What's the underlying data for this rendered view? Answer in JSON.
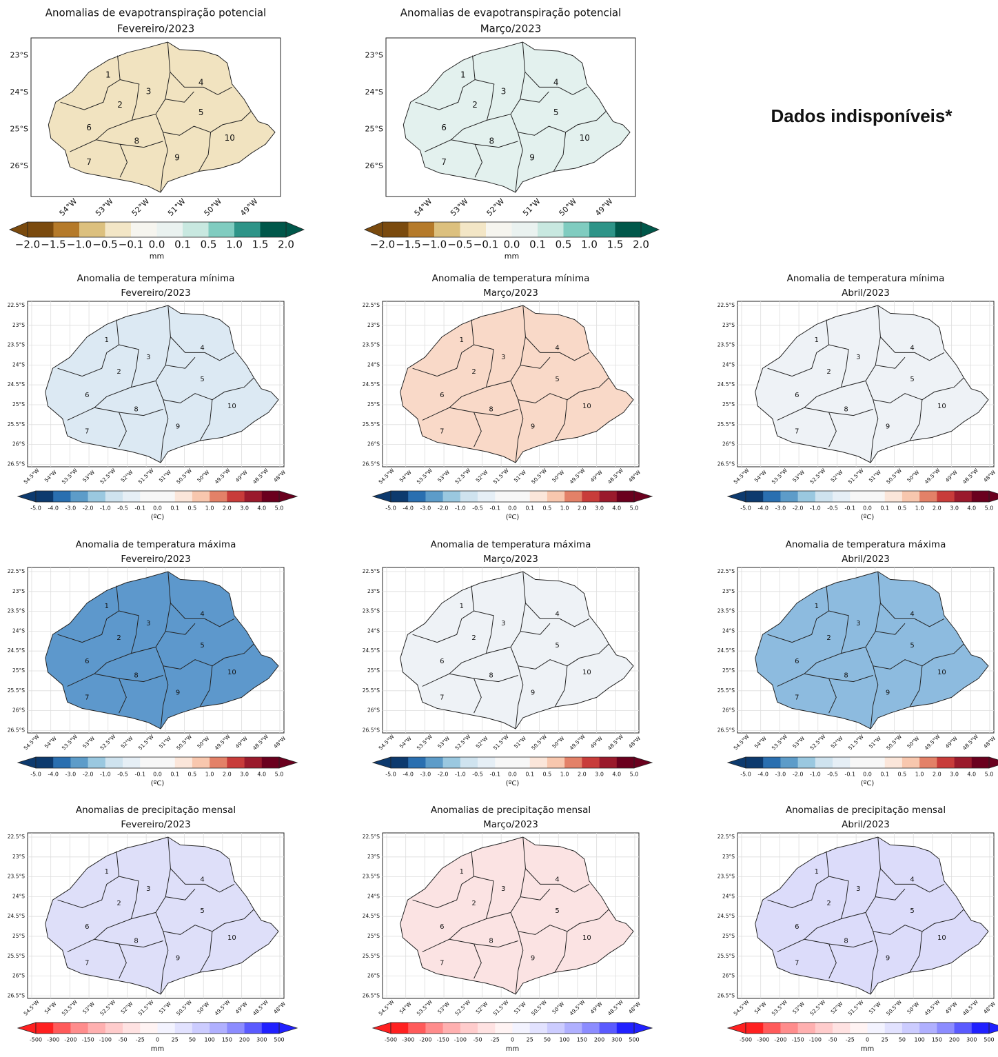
{
  "regions": [
    "1",
    "2",
    "3",
    "4",
    "5",
    "6",
    "7",
    "8",
    "9",
    "10"
  ],
  "note": "Dados indisponíveis*",
  "rows": [
    {
      "title": "Anomalias de evapotranspiração potencial",
      "lat_ticks": [
        "23°S",
        "24°S",
        "25°S",
        "26°S"
      ],
      "lon_ticks": [
        "54°W",
        "53°W",
        "52°W",
        "51°W",
        "50°W",
        "49°W"
      ],
      "colorbar": {
        "ticks": [
          "−2.0",
          "−1.5",
          "−1.0",
          "−0.5",
          "−0.1",
          "0.0",
          "0.1",
          "0.5",
          "1.0",
          "1.5",
          "2.0"
        ],
        "unit": "mm",
        "colors": [
          "#7a4a0e",
          "#b57a2a",
          "#dcc07e",
          "#f3e6c6",
          "#f6f5ef",
          "#eaf2f0",
          "#c8e8e0",
          "#80ccc0",
          "#2e9488",
          "#00574a"
        ]
      },
      "panels": [
        {
          "month": "Fevereiro/2023",
          "fill": "#f1e3c0"
        },
        {
          "month": "Março/2023",
          "fill": "#e3f1ee"
        }
      ]
    },
    {
      "title": "Anomalia de temperatura mínima",
      "lat_ticks": [
        "22.5°S",
        "23°S",
        "23.5°S",
        "24°S",
        "24.5°S",
        "25°S",
        "25.5°S",
        "26°S",
        "26.5°S"
      ],
      "lon_ticks": [
        "54.5°W",
        "54°W",
        "53.5°W",
        "53°W",
        "52.5°W",
        "52°W",
        "51.5°W",
        "51°W",
        "50.5°W",
        "50°W",
        "49.5°W",
        "49°W",
        "48.5°W",
        "48°W"
      ],
      "colorbar": {
        "ticks": [
          "-5.0",
          "-4.0",
          "-3.0",
          "-2.0",
          "-1.0",
          "-0.5",
          "-0.1",
          "0.0",
          "0.1",
          "0.5",
          "1.0",
          "2.0",
          "3.0",
          "4.0",
          "5.0"
        ],
        "unit": "(ºC)",
        "colors": [
          "#0d3a6e",
          "#2a6fb0",
          "#5d9cc9",
          "#9ac8e0",
          "#cfe3ef",
          "#e6eff6",
          "#f7f7f7",
          "#f7f7f7",
          "#fbe6da",
          "#f8c7ae",
          "#e38168",
          "#c83c3a",
          "#9a1a2c",
          "#6a001e"
        ]
      },
      "panels": [
        {
          "month": "Fevereiro/2023",
          "fill": "#dce9f3"
        },
        {
          "month": "Março/2023",
          "fill": "#f9d9c8"
        },
        {
          "month": "Abril/2023",
          "fill": "#eef2f6"
        }
      ]
    },
    {
      "title": "Anomalia de temperatura máxima",
      "lat_ticks": [
        "22.5°S",
        "23°S",
        "23.5°S",
        "24°S",
        "24.5°S",
        "25°S",
        "25.5°S",
        "26°S",
        "26.5°S"
      ],
      "lon_ticks": [
        "54.5°W",
        "54°W",
        "53.5°W",
        "53°W",
        "52.5°W",
        "52°W",
        "51.5°W",
        "51°W",
        "50.5°W",
        "50°W",
        "49.5°W",
        "49°W",
        "48.5°W",
        "48°W"
      ],
      "colorbar": {
        "ticks": [
          "-5.0",
          "-4.0",
          "-3.0",
          "-2.0",
          "-1.0",
          "-0.5",
          "-0.1",
          "0.0",
          "0.1",
          "0.5",
          "1.0",
          "2.0",
          "3.0",
          "4.0",
          "5.0"
        ],
        "unit": "(ºC)",
        "colors": [
          "#0d3a6e",
          "#2a6fb0",
          "#5d9cc9",
          "#9ac8e0",
          "#cfe3ef",
          "#e6eff6",
          "#f7f7f7",
          "#f7f7f7",
          "#fbe6da",
          "#f8c7ae",
          "#e38168",
          "#c83c3a",
          "#9a1a2c",
          "#6a001e"
        ]
      },
      "panels": [
        {
          "month": "Fevereiro/2023",
          "fill": "#5d98cc"
        },
        {
          "month": "Março/2023",
          "fill": "#eef2f6"
        },
        {
          "month": "Abril/2023",
          "fill": "#8dbbdf"
        }
      ]
    },
    {
      "title": "Anomalias de precipitação mensal",
      "lat_ticks": [
        "22.5°S",
        "23°S",
        "23.5°S",
        "24°S",
        "24.5°S",
        "25°S",
        "25.5°S",
        "26°S",
        "26.5°S"
      ],
      "lon_ticks": [
        "54.5°W",
        "54°W",
        "53.5°W",
        "53°W",
        "52.5°W",
        "52°W",
        "51.5°W",
        "51°W",
        "50.5°W",
        "50°W",
        "49.5°W",
        "49°W",
        "48.5°W",
        "48°W"
      ],
      "colorbar": {
        "ticks": [
          "-500",
          "-300",
          "-200",
          "-150",
          "-100",
          "-50",
          "-25",
          "0",
          "25",
          "50",
          "100",
          "150",
          "200",
          "300",
          "500"
        ],
        "unit": "mm",
        "colors": [
          "#ff2020",
          "#ff5a5a",
          "#ff8c8c",
          "#ffb0b0",
          "#ffcccc",
          "#ffe2e2",
          "#fff3f3",
          "#f3f3ff",
          "#e2e2ff",
          "#ccccff",
          "#b0b0ff",
          "#8c8cff",
          "#5a5aff",
          "#2020ff"
        ]
      },
      "panels": [
        {
          "month": "Fevereiro/2023",
          "fill": "#dedff9"
        },
        {
          "month": "Março/2023",
          "fill": "#fbe3e3"
        },
        {
          "month": "Abril/2023",
          "fill": "#dcdcfa"
        }
      ]
    }
  ]
}
